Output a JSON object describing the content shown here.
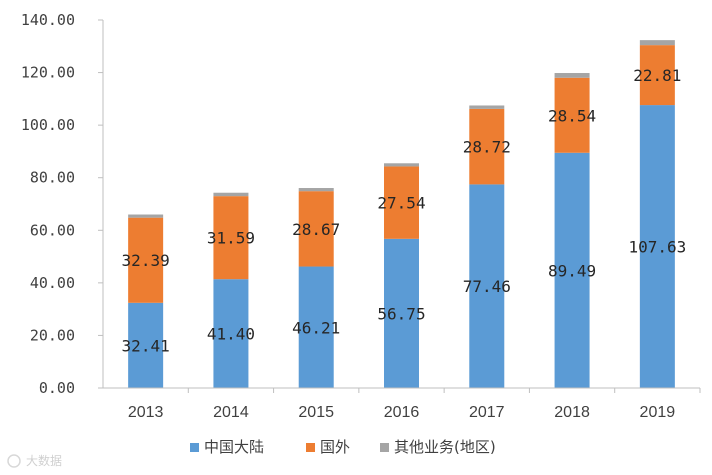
{
  "chart_data": {
    "type": "bar",
    "stacked": true,
    "categories": [
      "2013",
      "2014",
      "2015",
      "2016",
      "2017",
      "2018",
      "2019"
    ],
    "series": [
      {
        "name": "中国大陆",
        "color": "#5b9bd5",
        "values": [
          32.41,
          41.4,
          46.21,
          56.75,
          77.46,
          89.49,
          107.63
        ],
        "labels": [
          "32.41",
          "41.40",
          "46.21",
          "56.75",
          "77.46",
          "89.49",
          "107.63"
        ]
      },
      {
        "name": "国外",
        "color": "#ed7d31",
        "values": [
          32.39,
          31.59,
          28.67,
          27.54,
          28.72,
          28.54,
          22.81
        ],
        "labels": [
          "32.39",
          "31.59",
          "28.67",
          "27.54",
          "28.72",
          "28.54",
          "22.81"
        ]
      },
      {
        "name": "其他业务(地区)",
        "color": "#a5a5a5",
        "values": [
          1.2,
          1.3,
          1.2,
          1.2,
          1.3,
          1.8,
          1.9
        ],
        "labels": []
      }
    ],
    "ylim": [
      0,
      140
    ],
    "yticks": [
      "0.00",
      "20.00",
      "40.00",
      "60.00",
      "80.00",
      "100.00",
      "120.00",
      "140.00"
    ],
    "title": "",
    "xlabel": "",
    "ylabel": "",
    "legend_position": "bottom",
    "grid": false
  },
  "watermark": "大数据"
}
